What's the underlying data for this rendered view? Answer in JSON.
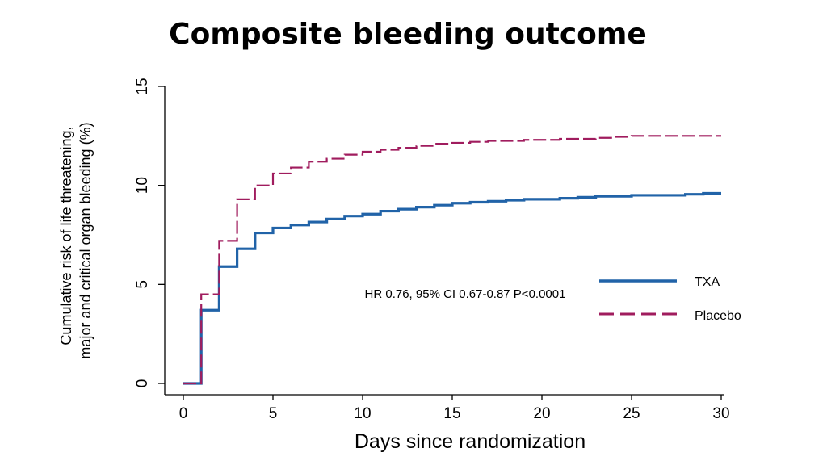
{
  "slide": {
    "title": "Composite bleeding outcome"
  },
  "colors": {
    "txa": "#2163a8",
    "placebo": "#a01c5e",
    "axis": "#000000"
  },
  "chart_data": {
    "type": "line",
    "title": "Composite bleeding outcome",
    "xlabel": "Days since randomization",
    "ylabel_line1": "Cumulative risk of life threatening,",
    "ylabel_line2": "major and critical organ bleeding (%)",
    "xlim": [
      0,
      30
    ],
    "ylim": [
      0,
      15
    ],
    "xticks": [
      0,
      5,
      10,
      15,
      20,
      25,
      30
    ],
    "yticks": [
      0,
      5,
      10,
      15
    ],
    "x_tick_labels": [
      "0",
      "5",
      "10",
      "15",
      "20",
      "25",
      "30"
    ],
    "y_tick_labels": [
      "0",
      "5",
      "10",
      "15"
    ],
    "step": true,
    "series": [
      {
        "name": "TXA",
        "style": "solid",
        "x": [
          0,
          1,
          2,
          3,
          4,
          5,
          6,
          7,
          8,
          9,
          10,
          11,
          12,
          13,
          14,
          15,
          16,
          17,
          18,
          19,
          20,
          21,
          22,
          23,
          24,
          25,
          26,
          27,
          28,
          29,
          30
        ],
        "y": [
          0,
          3.7,
          5.9,
          6.8,
          7.6,
          7.85,
          8.0,
          8.15,
          8.3,
          8.45,
          8.55,
          8.7,
          8.8,
          8.9,
          9.0,
          9.1,
          9.15,
          9.2,
          9.25,
          9.3,
          9.3,
          9.35,
          9.4,
          9.45,
          9.45,
          9.5,
          9.5,
          9.5,
          9.55,
          9.6,
          9.6
        ]
      },
      {
        "name": "Placebo",
        "style": "dashed",
        "x": [
          0,
          1,
          2,
          3,
          4,
          5,
          6,
          7,
          8,
          9,
          10,
          11,
          12,
          13,
          14,
          15,
          16,
          17,
          18,
          19,
          20,
          21,
          22,
          23,
          24,
          25,
          26,
          27,
          28,
          29,
          30
        ],
        "y": [
          0,
          4.5,
          7.2,
          9.3,
          10.0,
          10.6,
          10.9,
          11.2,
          11.35,
          11.55,
          11.7,
          11.8,
          11.9,
          12.0,
          12.1,
          12.15,
          12.2,
          12.25,
          12.25,
          12.3,
          12.3,
          12.35,
          12.35,
          12.4,
          12.45,
          12.5,
          12.5,
          12.5,
          12.5,
          12.5,
          12.5
        ]
      }
    ],
    "annotations": [
      "HR 0.76, 95% CI 0.67-0.87 P<0.0001"
    ],
    "legend": {
      "position": "right",
      "entries": [
        "TXA",
        "Placebo"
      ]
    }
  }
}
